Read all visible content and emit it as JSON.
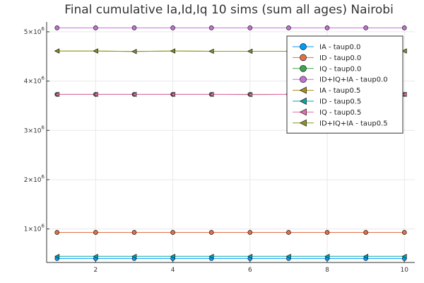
{
  "chart_data": {
    "type": "line",
    "title": "Final cumulative Ia,Id,Iq 10 sims (sum all ages) Nairobi",
    "xlabel": "",
    "ylabel": "",
    "x": [
      1,
      2,
      3,
      4,
      5,
      6,
      7,
      8,
      9,
      10
    ],
    "xlim": [
      0.73,
      10.27
    ],
    "ylim": [
      320000,
      5200000
    ],
    "xticks": [
      2,
      4,
      6,
      8,
      10
    ],
    "xtick_labels": [
      "2",
      "4",
      "6",
      "8",
      "10"
    ],
    "yticks": [
      1000000,
      2000000,
      3000000,
      4000000,
      5000000
    ],
    "ytick_labels": [
      {
        "base": "1×10",
        "exp": "6"
      },
      {
        "base": "2×10",
        "exp": "6"
      },
      {
        "base": "3×10",
        "exp": "6"
      },
      {
        "base": "4×10",
        "exp": "6"
      },
      {
        "base": "5×10",
        "exp": "6"
      }
    ],
    "grid": true,
    "legend_position": "top-right",
    "series": [
      {
        "name": "IA - taup0.0",
        "color": "#009AFA",
        "marker": "circle",
        "values": [
          400000,
          400000,
          400000,
          400000,
          400000,
          400000,
          400000,
          400000,
          400000,
          400000
        ]
      },
      {
        "name": "ID - taup0.0",
        "color": "#E36F47",
        "marker": "circle",
        "values": [
          930000,
          930000,
          930000,
          930000,
          930000,
          930000,
          930000,
          930000,
          930000,
          930000
        ]
      },
      {
        "name": "IQ - taup0.0",
        "color": "#3EA44E",
        "marker": "circle",
        "values": [
          3730000,
          3730000,
          3730000,
          3730000,
          3730000,
          3730000,
          3730000,
          3730000,
          3730000,
          3730000
        ]
      },
      {
        "name": "ID+IQ+IA - taup0.0",
        "color": "#C371D2",
        "marker": "circle",
        "values": [
          5080000,
          5080000,
          5080000,
          5080000,
          5080000,
          5080000,
          5080000,
          5080000,
          5080000,
          5080000
        ]
      },
      {
        "name": "IA - taup0.5",
        "color": "#AC8E18",
        "marker": "triangle-left",
        "values": [
          4610000,
          4610000,
          4600000,
          4610000,
          4605000,
          4605000,
          4605000,
          4610000,
          4610000,
          4610000
        ]
      },
      {
        "name": "ID - taup0.5",
        "color": "#00A9AD",
        "marker": "triangle-left",
        "values": [
          445000,
          445000,
          445000,
          445000,
          445000,
          445000,
          445000,
          445000,
          445000,
          445000
        ]
      },
      {
        "name": "IQ - taup0.5",
        "color": "#EC6BA6",
        "marker": "triangle-left",
        "values": [
          3730000,
          3730000,
          3730000,
          3730000,
          3730000,
          3725000,
          3730000,
          3730000,
          3730000,
          3730000
        ]
      },
      {
        "name": "ID+IQ+IA - taup0.5",
        "color": "#8E971E",
        "marker": "triangle-left",
        "values": [
          4610000,
          4610000,
          4600000,
          4610000,
          4605000,
          4605000,
          4605000,
          4610000,
          4610000,
          4610000
        ]
      }
    ]
  }
}
